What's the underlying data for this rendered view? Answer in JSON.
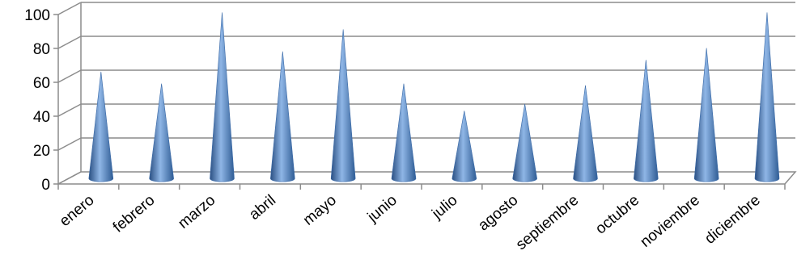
{
  "chart_data": {
    "type": "bar",
    "style": "3d-cone",
    "categories": [
      "enero",
      "febrero",
      "marzo",
      "abril",
      "mayo",
      "junio",
      "julio",
      "agosto",
      "septiembre",
      "octubre",
      "noviembre",
      "diciembre"
    ],
    "series": [
      {
        "values": [
          63,
          56,
          98,
          75,
          88,
          56,
          40,
          44,
          55,
          70,
          77,
          98
        ]
      }
    ],
    "title": "",
    "xlabel": "",
    "ylabel": "",
    "ylim": [
      0,
      100
    ],
    "yticks": [
      0,
      20,
      40,
      60,
      80,
      100
    ],
    "grid": true,
    "legend": "none",
    "colors": {
      "cone_light": "#8fb6e6",
      "cone_mid": "#4f81bd",
      "cone_dark": "#2a4f82",
      "grid": "#8c8c8c"
    }
  }
}
